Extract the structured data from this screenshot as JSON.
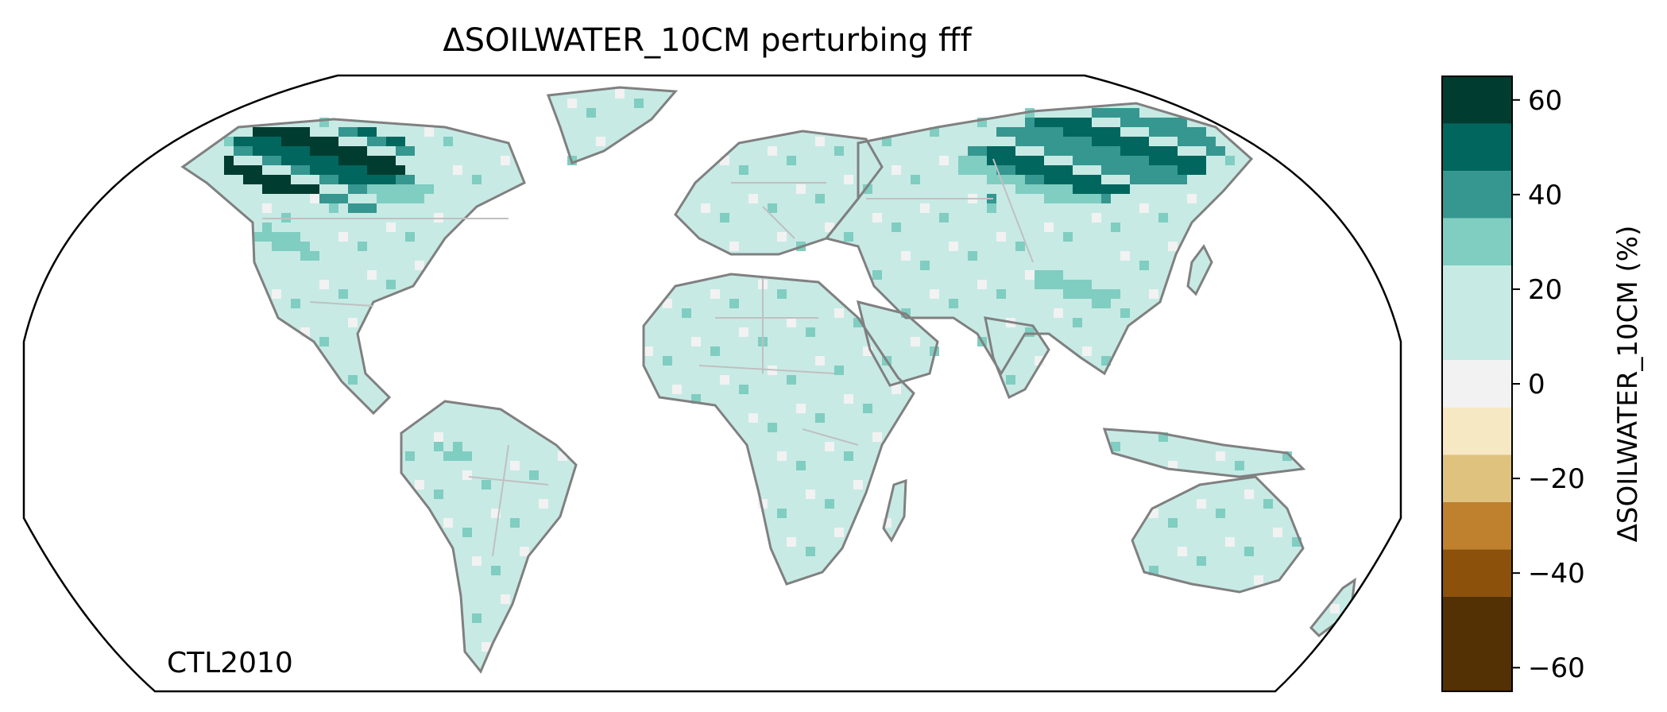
{
  "title": "ΔSOILWATER_10CM perturbing fff",
  "corner_label": "CTL2010",
  "colorbar": {
    "label": "ΔSOILWATER_10CM (%)",
    "ticks": [
      "60",
      "40",
      "20",
      "0",
      "−20",
      "−40",
      "−60"
    ],
    "tick_values": [
      60,
      40,
      20,
      0,
      -20,
      -40,
      -60
    ],
    "range": [
      -65,
      65
    ],
    "bins": [
      {
        "min": 55,
        "max": 65,
        "color": "#003c30"
      },
      {
        "min": 45,
        "max": 55,
        "color": "#01665e"
      },
      {
        "min": 35,
        "max": 45,
        "color": "#35978f"
      },
      {
        "min": 25,
        "max": 35,
        "color": "#80cdc1"
      },
      {
        "min": 5,
        "max": 25,
        "color": "#c7eae5"
      },
      {
        "min": -5,
        "max": 5,
        "color": "#f2f2f2"
      },
      {
        "min": -15,
        "max": -5,
        "color": "#f6e8c3"
      },
      {
        "min": -25,
        "max": -15,
        "color": "#dfc27d"
      },
      {
        "min": -35,
        "max": -25,
        "color": "#bf812d"
      },
      {
        "min": -45,
        "max": -35,
        "color": "#8c510a"
      },
      {
        "min": -65,
        "max": -45,
        "color": "#543005"
      }
    ]
  },
  "map": {
    "projection": "Robinson",
    "coastline_color": "#808080",
    "border_color": "#c0c0c0",
    "land_base_color": "#c7eae5"
  }
}
